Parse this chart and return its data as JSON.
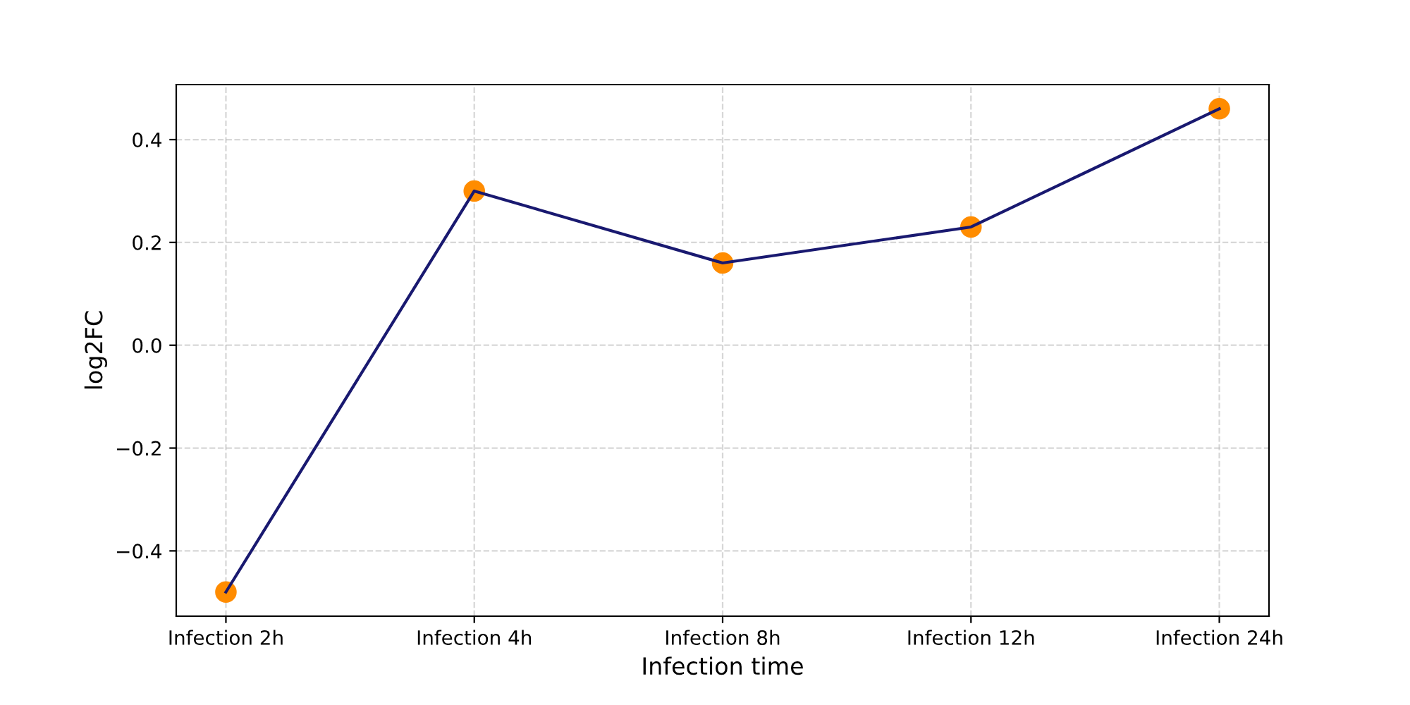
{
  "chart_data": {
    "type": "line",
    "xlabel": "Infection time",
    "ylabel": "log2FC",
    "categories": [
      "Infection 2h",
      "Infection 4h",
      "Infection 8h",
      "Infection 12h",
      "Infection 24h"
    ],
    "series": [
      {
        "type": "scatter",
        "color": "#ff8c00",
        "marker": "circle",
        "values": [
          -0.48,
          0.3,
          0.16,
          0.23,
          0.46
        ]
      },
      {
        "color": "#191970",
        "marker": "none",
        "line_style": "solid",
        "values": [
          -0.48,
          0.3,
          0.16,
          0.23,
          0.46
        ]
      }
    ],
    "ylim": [
      -0.527,
      0.507
    ],
    "yticks": [
      {
        "value": -0.4,
        "label": "−0.4"
      },
      {
        "value": -0.2,
        "label": "−0.2"
      },
      {
        "value": 0.0,
        "label": "0.0"
      },
      {
        "value": 0.2,
        "label": "0.2"
      },
      {
        "value": 0.4,
        "label": "0.4"
      }
    ],
    "grid": true
  }
}
